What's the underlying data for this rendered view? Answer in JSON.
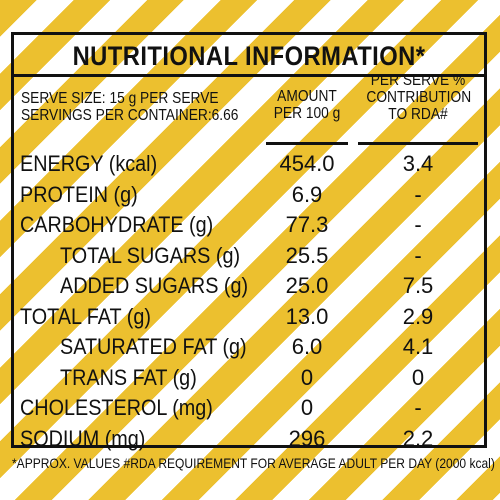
{
  "label": {
    "title": "NUTRITIONAL INFORMATION*",
    "serving": {
      "size": "SERVE SIZE: 15 g PER SERVE",
      "per_container": "SERVINGS PER CONTAINER:6.66"
    },
    "columns": {
      "per_100g_line1": "AMOUNT",
      "per_100g_line2": "PER 100 g",
      "rda_line1": "PER SERVE %",
      "rda_line2": "CONTRIBUTION",
      "rda_line3": "TO RDA#"
    },
    "rows": [
      {
        "name": "ENERGY (kcal)",
        "per_100g": "454.0",
        "rda": "3.4",
        "indent": false
      },
      {
        "name": "PROTEIN (g)",
        "per_100g": "6.9",
        "rda": "-",
        "indent": false
      },
      {
        "name": "CARBOHYDRATE (g)",
        "per_100g": "77.3",
        "rda": "-",
        "indent": false
      },
      {
        "name": "TOTAL SUGARS (g)",
        "per_100g": "25.5",
        "rda": "-",
        "indent": true
      },
      {
        "name": "ADDED SUGARS (g)",
        "per_100g": "25.0",
        "rda": "7.5",
        "indent": true
      },
      {
        "name": "TOTAL FAT (g)",
        "per_100g": "13.0",
        "rda": "2.9",
        "indent": false
      },
      {
        "name": "SATURATED FAT (g)",
        "per_100g": "6.0",
        "rda": "4.1",
        "indent": true
      },
      {
        "name": "TRANS FAT (g)",
        "per_100g": "0",
        "rda": "0",
        "indent": true
      },
      {
        "name": "CHOLESTEROL (mg)",
        "per_100g": "0",
        "rda": "-",
        "indent": false
      },
      {
        "name": "SODIUM (mg)",
        "per_100g": "296",
        "rda": "2.2",
        "indent": false
      }
    ],
    "footnote": "*APPROX. VALUES  #RDA REQUIREMENT FOR AVERAGE ADULT PER DAY (2000 kcal)"
  },
  "colors": {
    "stripe": "#ecc02f",
    "ink": "#111111",
    "background": "#ffffff"
  }
}
